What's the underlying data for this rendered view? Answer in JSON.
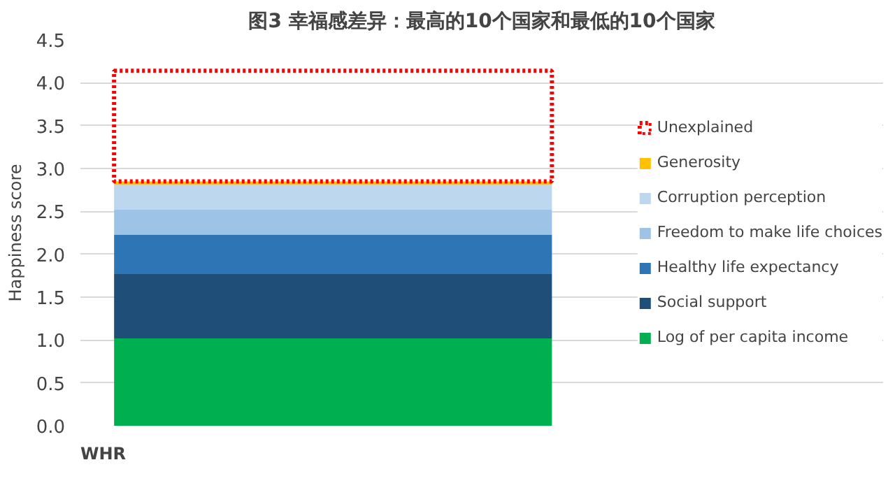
{
  "chart_data": {
    "type": "bar",
    "stacked": true,
    "title": "图3 幸福感差异：最高的10个国家和最低的10个国家",
    "ylabel": "Happiness score",
    "categories": [
      null
    ],
    "series": [
      {
        "name": "Log of per capita income",
        "color": "#00b050",
        "values": [
          1.02
        ]
      },
      {
        "name": "Social support",
        "color": "#1f4e79",
        "values": [
          0.75
        ]
      },
      {
        "name": "Healthy life expectancy",
        "color": "#2e75b6",
        "values": [
          0.46
        ]
      },
      {
        "name": "Freedom to make life choices",
        "color": "#9dc3e6",
        "values": [
          0.29
        ]
      },
      {
        "name": "Corruption perception",
        "color": "#bdd7ee",
        "values": [
          0.29
        ]
      },
      {
        "name": "Generosity",
        "color": "#ffc000",
        "values": [
          0.04
        ]
      },
      {
        "name": "Unexplained",
        "color": "#ff0000",
        "values": [
          1.29
        ],
        "line_style": "dotted"
      }
    ],
    "ylim": [
      0,
      4.5
    ],
    "yticks": [
      {
        "value": 0,
        "label": "0.0"
      },
      0.5,
      {
        "value": 1,
        "label": "1.0"
      },
      1.5,
      {
        "value": 2,
        "label": "2.0"
      },
      2.5,
      {
        "value": 3,
        "label": "3.0"
      },
      3.5,
      {
        "value": 4,
        "label": "4.0"
      },
      4.5
    ],
    "grid": "y",
    "legend": "right",
    "tick_labels": "y",
    "annotations": [
      "WHR"
    ]
  }
}
